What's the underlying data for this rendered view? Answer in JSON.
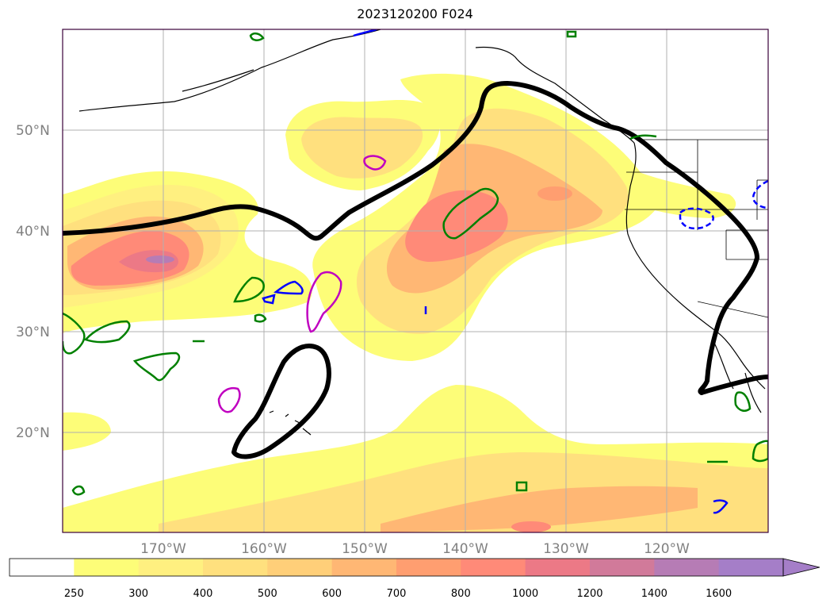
{
  "title": "2023120200 F024",
  "latitudes": [
    {
      "value": 50,
      "label": "50°N"
    },
    {
      "value": 40,
      "label": "40°N"
    },
    {
      "value": 30,
      "label": "30°N"
    },
    {
      "value": 20,
      "label": "20°N"
    }
  ],
  "longitudes": [
    {
      "value": -170,
      "label": "170°W"
    },
    {
      "value": -160,
      "label": "160°W"
    },
    {
      "value": -150,
      "label": "150°W"
    },
    {
      "value": -140,
      "label": "140°W"
    },
    {
      "value": -130,
      "label": "130°W"
    },
    {
      "value": -120,
      "label": "120°W"
    }
  ],
  "colorbar": {
    "levels": [
      "250",
      "300",
      "400",
      "500",
      "600",
      "700",
      "800",
      "1000",
      "1200",
      "1400",
      "1600"
    ],
    "colors": [
      "#ffffff",
      "#fdfd78",
      "#fff080",
      "#ffe07e",
      "#ffcf79",
      "#ffb774",
      "#ff9e70",
      "#ff8a78",
      "#ec7986",
      "#d17a9a",
      "#b67cb5",
      "#a57ec8"
    ],
    "extend": "max"
  },
  "contour_colors": {
    "black_line": "#000000",
    "green": "#008000",
    "blue": "#0000ff",
    "magenta": "#c000c0"
  }
}
